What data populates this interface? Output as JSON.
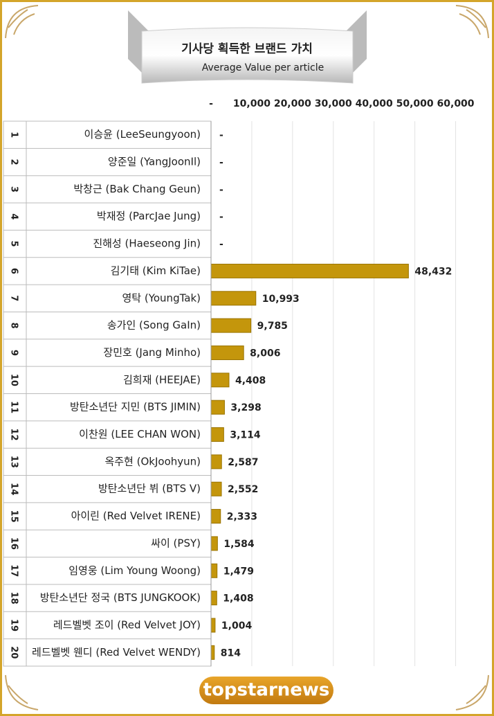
{
  "chart_data": {
    "type": "barh",
    "title": "기사당 획득한 브랜드 가치",
    "subtitle": "Average Value per article",
    "logo": "topstarnews",
    "ranks": [
      "1",
      "2",
      "3",
      "4",
      "5",
      "6",
      "7",
      "8",
      "9",
      "10",
      "11",
      "12",
      "13",
      "14",
      "15",
      "16",
      "17",
      "18",
      "19",
      "20"
    ],
    "categories": [
      "이승윤 (LeeSeungyoon)",
      "양준일 (YangJoonIl)",
      "박창근 (Bak Chang Geun)",
      "박재정 (ParcJae Jung)",
      "진해성 (Haeseong Jin)",
      "김기태 (Kim KiTae)",
      "영탁 (YoungTak)",
      "송가인 (Song GaIn)",
      "장민호 (Jang Minho)",
      "김희재 (HEEJAE)",
      "방탄소년단 지민 (BTS JIMIN)",
      "이찬원 (LEE CHAN WON)",
      "옥주현 (OkJoohyun)",
      "방탄소년단 뷔 (BTS V)",
      "아이린 (Red Velvet IRENE)",
      "싸이 (PSY)",
      "임영웅 (Lim Young Woong)",
      "방탄소년단 정국 (BTS JUNGKOOK)",
      "레드벨벳 조이 (Red Velvet JOY)",
      "레드벨벳 웬디 (Red Velvet WENDY)"
    ],
    "values": [
      0,
      0,
      0,
      0,
      0,
      48432,
      10993,
      9785,
      8006,
      4408,
      3298,
      3114,
      2587,
      2552,
      2333,
      1584,
      1479,
      1408,
      1004,
      814
    ],
    "value_labels": [
      "-",
      "-",
      "-",
      "-",
      "-",
      "48,432",
      "10,993",
      "9,785",
      "8,006",
      "4,408",
      "3,298",
      "3,114",
      "2,587",
      "2,552",
      "2,333",
      "1,584",
      "1,479",
      "1,408",
      "1,004",
      "814"
    ],
    "color": "#c4960c",
    "xlim": [
      0,
      65000
    ],
    "xticks": [
      {
        "value": 0,
        "label": "-"
      },
      {
        "value": 10000,
        "label": "10,000"
      },
      {
        "value": 20000,
        "label": "20,000"
      },
      {
        "value": 30000,
        "label": "30,000"
      },
      {
        "value": 40000,
        "label": "40,000"
      },
      {
        "value": 50000,
        "label": "50,000"
      },
      {
        "value": 60000,
        "label": "60,000"
      }
    ],
    "grid": true
  }
}
